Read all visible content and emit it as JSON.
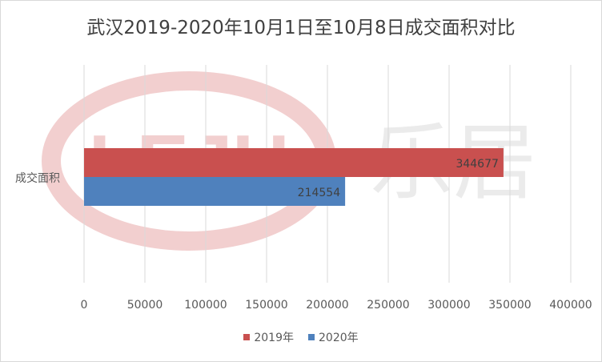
{
  "chart_data": {
    "type": "bar",
    "orientation": "horizontal",
    "title": "武汉2019-2020年10月1日至10月8日成交面积对比",
    "categories": [
      "成交面积"
    ],
    "series": [
      {
        "name": "2019年",
        "values": [
          344677
        ],
        "color": "#c9504f"
      },
      {
        "name": "2020年",
        "values": [
          214554
        ],
        "color": "#4f81bd"
      }
    ],
    "xlim": [
      0,
      400000
    ],
    "xticks": [
      0,
      50000,
      100000,
      150000,
      200000,
      250000,
      300000,
      350000,
      400000
    ],
    "grid": true,
    "legend_position": "bottom",
    "data_labels": true
  },
  "watermark": {
    "logo_text": "LEJU",
    "brand_text": "乐居",
    "color": "#e8b4b4"
  }
}
